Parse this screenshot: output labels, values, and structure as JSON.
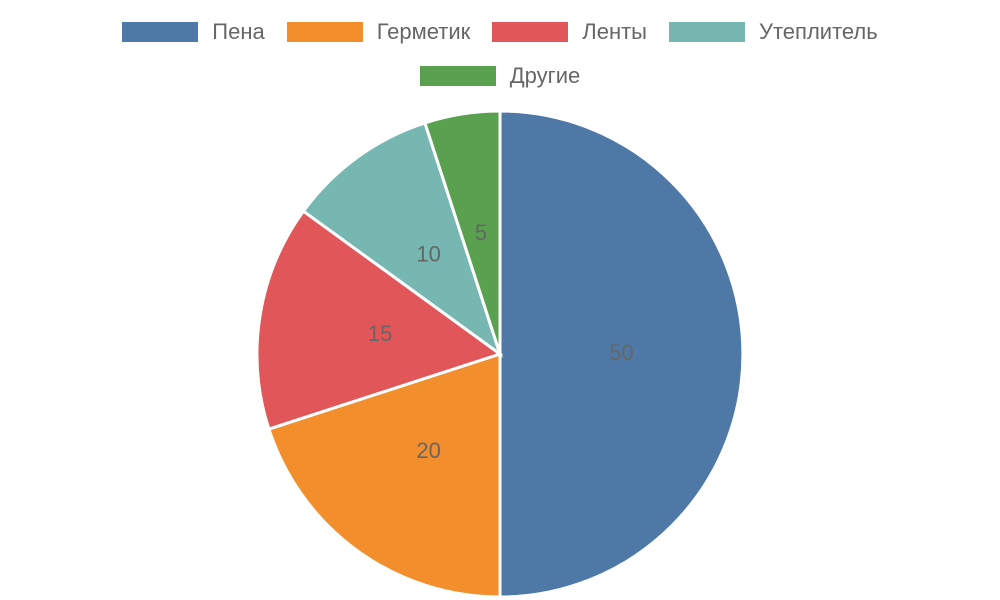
{
  "chart_data": {
    "type": "pie",
    "categories": [
      "Пена",
      "Герметик",
      "Ленты",
      "Утеплитель",
      "Другие"
    ],
    "values": [
      50,
      20,
      15,
      10,
      5
    ],
    "colors": [
      "#4e79a7",
      "#f28e2b",
      "#e15759",
      "#76b7b2",
      "#59a14f"
    ],
    "legend": "top"
  }
}
